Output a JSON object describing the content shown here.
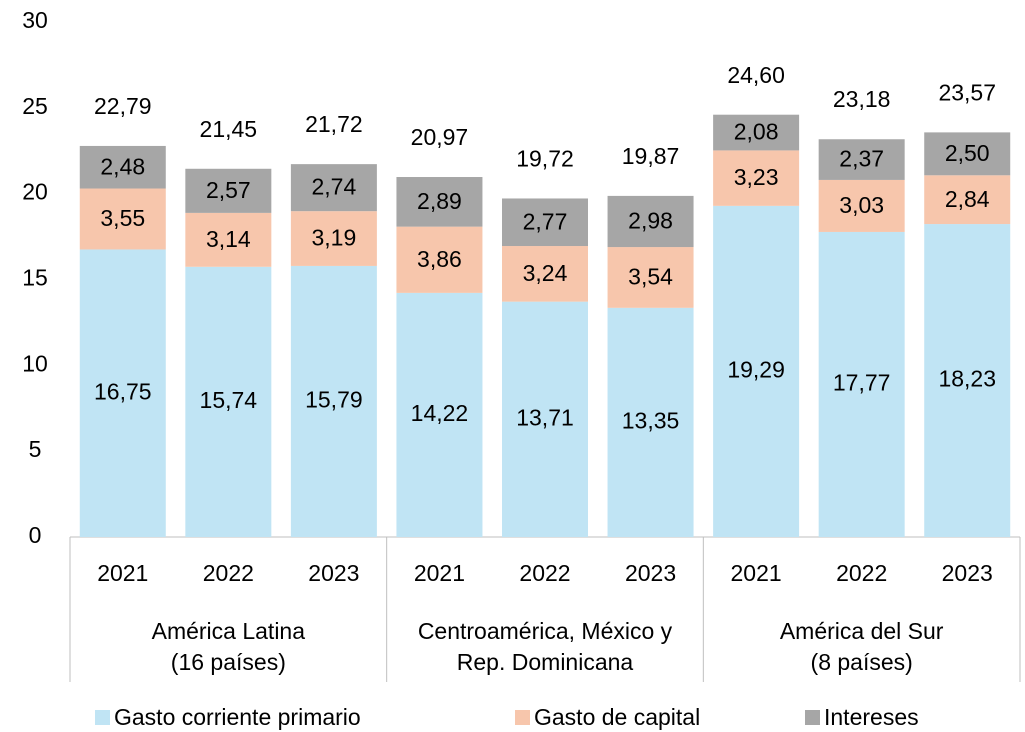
{
  "chart_data": {
    "type": "stacked_bar",
    "groups": [
      {
        "label_lines": [
          "América Latina",
          "(16 países)"
        ],
        "categories": [
          "2021",
          "2022",
          "2023"
        ]
      },
      {
        "label_lines": [
          "Centroamérica, México y",
          "Rep. Dominicana"
        ],
        "categories": [
          "2021",
          "2022",
          "2023"
        ]
      },
      {
        "label_lines": [
          "América del Sur",
          "(8 países)"
        ],
        "categories": [
          "2021",
          "2022",
          "2023"
        ]
      }
    ],
    "series": [
      {
        "name": "Gasto corriente primario",
        "color": "#c0e4f4",
        "values": [
          16.75,
          15.74,
          15.79,
          14.22,
          13.71,
          13.35,
          19.29,
          17.77,
          18.23
        ],
        "value_labels": [
          "16,75",
          "15,74",
          "15,79",
          "14,22",
          "13,71",
          "13,35",
          "19,29",
          "17,77",
          "18,23"
        ]
      },
      {
        "name": "Gasto de capital",
        "color": "#f7c6ac",
        "values": [
          3.55,
          3.14,
          3.19,
          3.86,
          3.24,
          3.54,
          3.23,
          3.03,
          2.84
        ],
        "value_labels": [
          "3,55",
          "3,14",
          "3,19",
          "3,86",
          "3,24",
          "3,54",
          "3,23",
          "3,03",
          "2,84"
        ]
      },
      {
        "name": "Intereses",
        "color": "#a6a6a6",
        "values": [
          2.48,
          2.57,
          2.74,
          2.89,
          2.77,
          2.98,
          2.08,
          2.37,
          2.5
        ],
        "value_labels": [
          "2,48",
          "2,57",
          "2,74",
          "2,89",
          "2,77",
          "2,98",
          "2,08",
          "2,37",
          "2,50"
        ]
      }
    ],
    "totals": {
      "values": [
        22.79,
        21.45,
        21.72,
        20.97,
        19.72,
        19.87,
        24.6,
        23.18,
        23.57
      ],
      "value_labels": [
        "22,79",
        "21,45",
        "21,72",
        "20,97",
        "19,72",
        "19,87",
        "24,60",
        "23,18",
        "23,57"
      ]
    },
    "ylim": [
      0,
      30
    ],
    "yticks": [
      0,
      5,
      10,
      15,
      20,
      25,
      30
    ],
    "grid": false,
    "legend": "bottom"
  }
}
